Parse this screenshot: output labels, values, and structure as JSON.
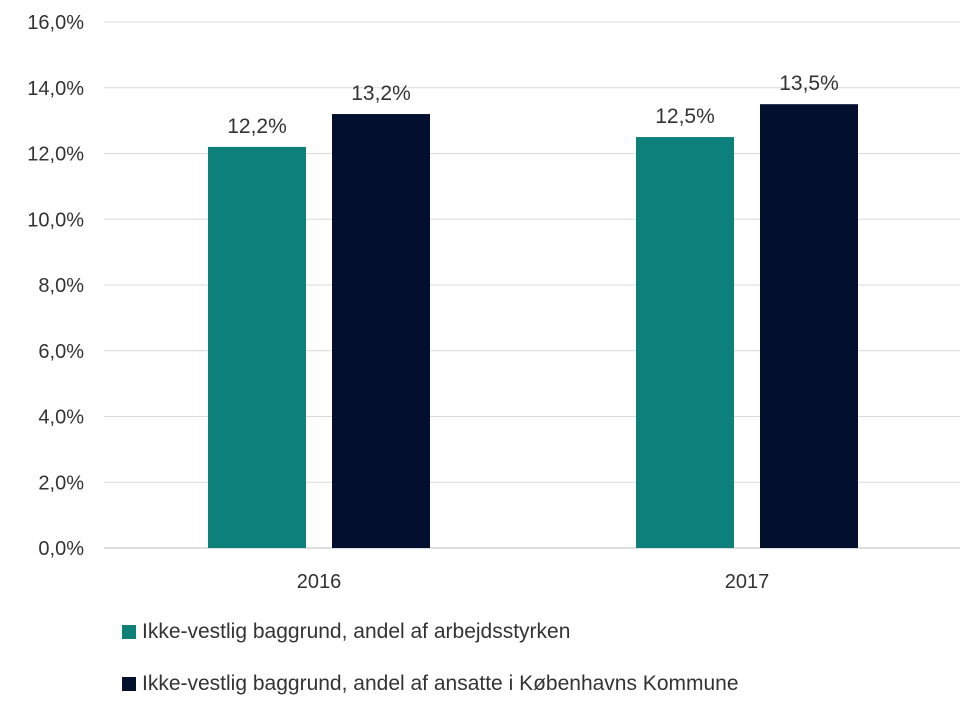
{
  "chart_data": {
    "type": "bar",
    "categories": [
      "2016",
      "2017"
    ],
    "series": [
      {
        "name": "Ikke-vestlig baggrund, andel af arbejdsstyrken",
        "values": [
          12.2,
          12.5
        ],
        "labels": [
          "12,2%",
          "12,5%"
        ],
        "color": "#0e807c"
      },
      {
        "name": "Ikke-vestlig baggrund, andel af ansatte i Københavns Kommune",
        "values": [
          13.2,
          13.5
        ],
        "labels": [
          "13,2%",
          "13,5%"
        ],
        "color": "#020f2e"
      }
    ],
    "ylim": [
      0,
      16
    ],
    "yticks": [
      0,
      2,
      4,
      6,
      8,
      10,
      12,
      14,
      16
    ],
    "ytick_labels": [
      "0,0%",
      "2,0%",
      "4,0%",
      "6,0%",
      "8,0%",
      "10,0%",
      "12,0%",
      "14,0%",
      "16,0%"
    ],
    "grid": true,
    "legend_position": "bottom",
    "title": "",
    "xlabel": "",
    "ylabel": ""
  }
}
